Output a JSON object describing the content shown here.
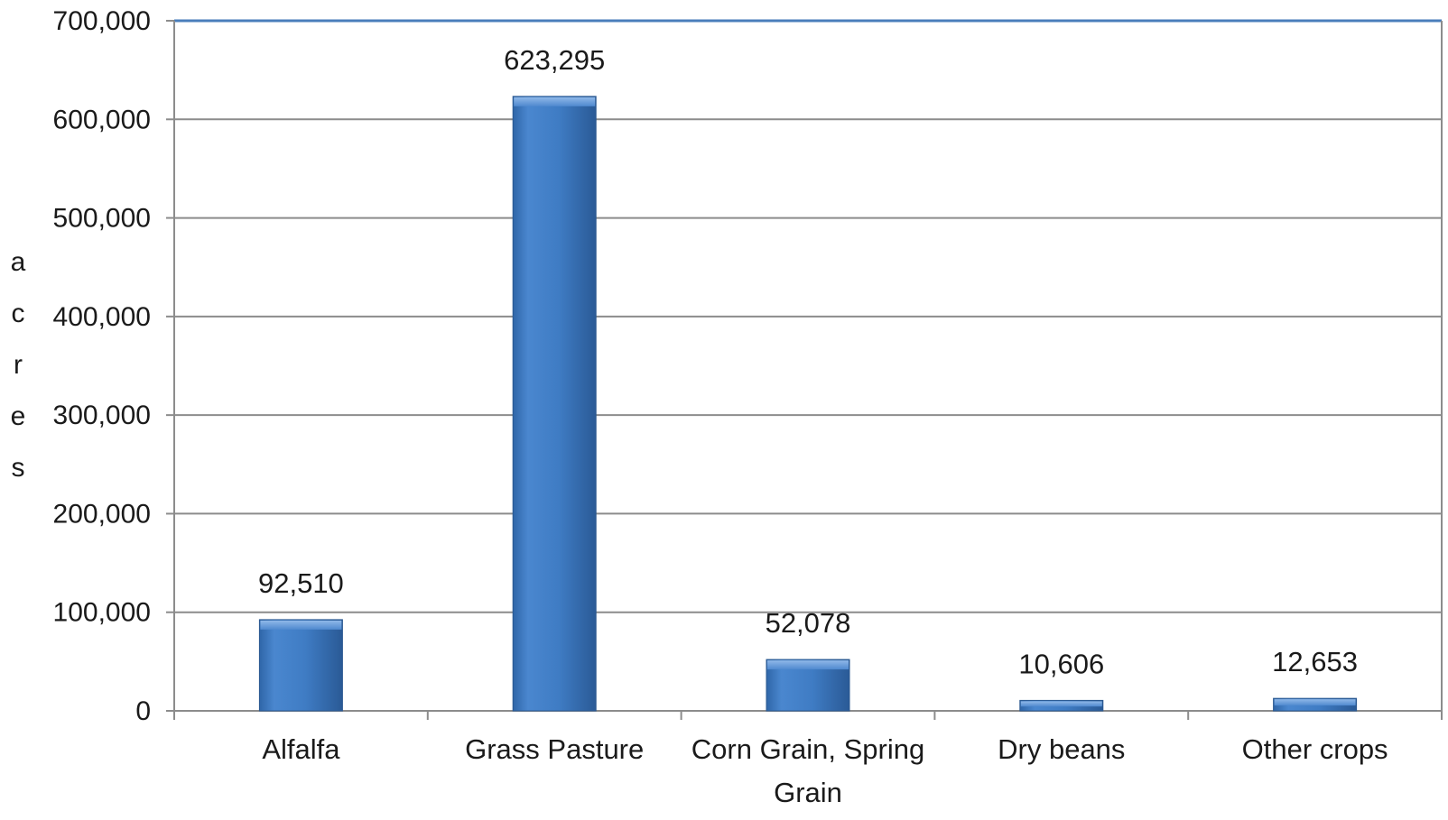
{
  "chart_data": {
    "type": "bar",
    "categories": [
      "Alfalfa",
      "Grass Pasture",
      "Corn Grain, Spring Grain",
      "Dry beans",
      "Other crops"
    ],
    "values": [
      92510,
      623295,
      52078,
      10606,
      12653
    ],
    "data_labels": [
      "92,510",
      "623,295",
      "52,078",
      "10,606",
      "12,653"
    ],
    "ylabel": "acres",
    "ylim": [
      0,
      700000
    ],
    "yticks": [
      0,
      100000,
      200000,
      300000,
      400000,
      500000,
      600000,
      700000
    ],
    "ytick_labels": [
      "0",
      "100,000",
      "200,000",
      "300,000",
      "400,000",
      "500,000",
      "600,000",
      "700,000"
    ],
    "grid": true,
    "legend": "none",
    "colors": {
      "bar_light": "#5f93d3",
      "bar_main": "#3f7cc4",
      "bar_dark": "#2c5f9e",
      "gridline": "#8c8c8c",
      "axis": "#8c8c8c",
      "plot_border": "#4a7ebb"
    }
  }
}
